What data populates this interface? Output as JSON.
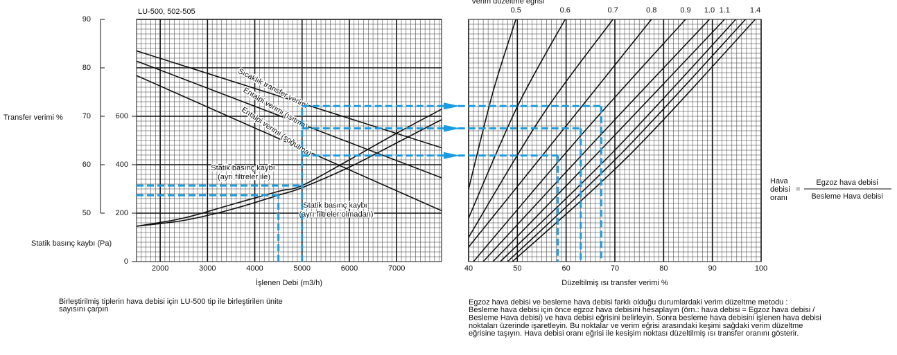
{
  "chart_data": [
    {
      "type": "line",
      "title": "LU-500, 502-505",
      "xlabel": "İşlenen Debi (m3/h)",
      "ylabel": "Transfer verimi %",
      "y2label": "Statik basınç kaybı (Pa)",
      "xlim": [
        1500,
        7950
      ],
      "xticks": [
        2000,
        3000,
        4000,
        5000,
        6000,
        7000
      ],
      "ylim": [
        40,
        90
      ],
      "yticks": [
        50,
        60,
        70,
        80,
        90
      ],
      "y2lim": [
        0,
        1000
      ],
      "y2ticks": [
        0,
        200,
        400,
        600
      ],
      "grid": true,
      "minor_xstep": 100,
      "minor_ystep": 1,
      "color": "#111111",
      "series": [
        {
          "name": "Sıcaklık transfer verimi",
          "x": [
            1500,
            7950
          ],
          "values": [
            83.5,
            63.5
          ]
        },
        {
          "name": "Entalpi verimi (ısıtma)",
          "x": [
            1500,
            7950
          ],
          "values": [
            81.4,
            57.3
          ]
        },
        {
          "name": "Entalpi verimi (soğutma)",
          "x": [
            1500,
            7950
          ],
          "values": [
            78.4,
            50.5
          ]
        },
        {
          "name": "Statik basınç kaybı (ayrı filtreler ile)",
          "axis": "y2",
          "x": [
            1500,
            2500,
            3500,
            4500,
            5000,
            6000,
            7000,
            7950
          ],
          "values": [
            146,
            180,
            235,
            290,
            314,
            420,
            530,
            629
          ]
        },
        {
          "name": "Statik basınç kaybı (ayrı filtreler olmadan)",
          "axis": "y2",
          "x": [
            1500,
            2500,
            3500,
            4500,
            5000,
            6000,
            7000,
            7950
          ],
          "values": [
            146,
            170,
            215,
            274,
            305,
            390,
            490,
            586
          ]
        }
      ]
    },
    {
      "type": "line",
      "title": "Verim düzeltme eğrisi",
      "xlabel": "Düzeltilmiş ısı transfer verimi %",
      "xlim": [
        40,
        100
      ],
      "xticks": [
        40,
        50,
        60,
        70,
        80,
        90,
        100
      ],
      "ylim": [
        40,
        90
      ],
      "grid": true,
      "minor_xstep": 1,
      "minor_ystep": 1,
      "color": "#111111",
      "series": [
        {
          "name": "0.5",
          "x": [
            40,
            45,
            49.7
          ],
          "values": [
            55,
            75,
            90
          ]
        },
        {
          "name": "0.6",
          "x": [
            40,
            50,
            59.8
          ],
          "values": [
            49,
            72,
            90
          ]
        },
        {
          "name": "0.7",
          "x": [
            40,
            55,
            69.6
          ],
          "values": [
            45,
            70,
            90
          ]
        },
        {
          "name": "0.8",
          "x": [
            40,
            60,
            77.5
          ],
          "values": [
            43,
            68,
            90
          ]
        },
        {
          "name": "0.9",
          "x": [
            41,
            63,
            84.5
          ],
          "values": [
            40,
            66,
            90
          ]
        },
        {
          "name": "1.0",
          "x": [
            43,
            66,
            89.4
          ],
          "values": [
            40,
            65,
            90
          ]
        },
        {
          "name": "1.1",
          "x": [
            45,
            68,
            92.5
          ],
          "values": [
            40,
            64,
            90
          ]
        },
        {
          "name": null,
          "x": [
            46.5,
            70,
            94.8
          ],
          "values": [
            40,
            63,
            90
          ]
        },
        {
          "name": null,
          "x": [
            48,
            71.5,
            96.8
          ],
          "values": [
            40,
            62.5,
            90
          ]
        },
        {
          "name": "1.4",
          "x": [
            49,
            73,
            98.8
          ],
          "values": [
            40,
            62,
            90
          ]
        }
      ]
    }
  ],
  "example": {
    "flows": [
      4500,
      5000
    ],
    "pressures": [
      274,
      314
    ],
    "efficiencies": [
      72.1,
      67.5,
      61.9
    ],
    "corrected": [
      67.2,
      63.0,
      58.3
    ],
    "color": "#1a9de0"
  },
  "formula": {
    "label_lines": [
      "Hava",
      "debisi",
      "oranı"
    ],
    "equals": "=",
    "numerator": "Egzoz hava debisi",
    "denominator": "Besleme Hava debisi"
  },
  "notes": {
    "left": [
      "Birleştirilmiş  tiplerin hava debisi için LU-500 tip ile birleştirilen ünite",
      "sayısını çarpın"
    ],
    "right": [
      "Egzoz hava debisi ve besleme hava debisi farklı olduğu durumlardaki verim düzeltme metodu :",
      "Besleme hava debisi için önce egzoz hava debisini hesaplayın (örn.: hava debisi = Egzoz hava debisi /",
      "Besleme Hava debisi) ve hava debisi eğrisini belirleyin. Sonra besleme hava debisini işlenen hava debisi",
      "noktaları üzerinde işaretleyin. Bu noktalar ve verim eğrisi arasındaki keşimi sağdaki verim düzeltme",
      "eğrisine taşıyın. Hava debisi oranı eğrisi ile kesişim noktası düzeltilmiş ısı transfer oranını gösterir."
    ]
  }
}
